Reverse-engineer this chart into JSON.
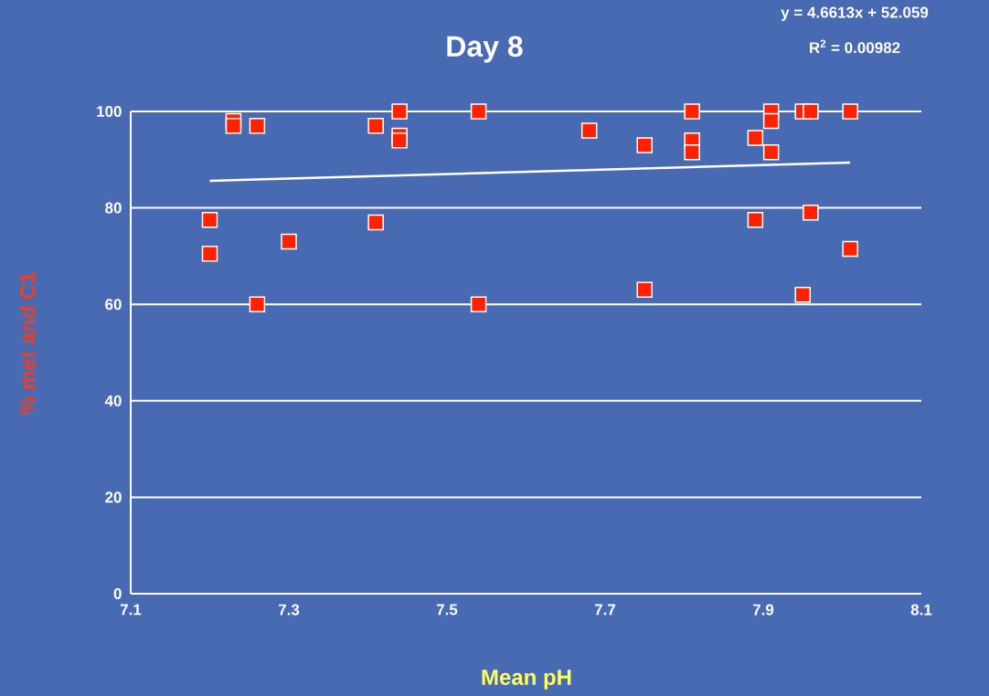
{
  "chart_data": {
    "type": "scatter",
    "title": "Day 8",
    "xlabel": "Mean pH",
    "ylabel": "% met and C1",
    "annotations": [
      "y = 4.6613x + 52.059",
      "R$^{2}$ = 0.00982"
    ],
    "xlim": [
      7.1,
      8.1
    ],
    "xticks": [
      7.1,
      7.3,
      7.5,
      7.7,
      7.9,
      8.1
    ],
    "ylim": [
      0,
      100
    ],
    "yticks": [
      0,
      20,
      40,
      60,
      80,
      100
    ],
    "grid": "y",
    "marker": "square",
    "series": [
      {
        "color": "#ff2200",
        "x": [
          7.2,
          7.2,
          7.23,
          7.23,
          7.26,
          7.26,
          7.3,
          7.41,
          7.41,
          7.44,
          7.44,
          7.44,
          7.54,
          7.54,
          7.68,
          7.75,
          7.75,
          7.81,
          7.81,
          7.81,
          7.89,
          7.89,
          7.91,
          7.91,
          7.91,
          7.95,
          7.95,
          7.96,
          7.96,
          8.01,
          8.01
        ],
        "values": [
          77.5,
          70.5,
          98,
          97,
          97,
          60,
          73,
          97,
          77,
          100,
          95,
          94,
          100,
          60,
          96,
          93,
          63,
          100,
          94,
          91.5,
          94.5,
          77.5,
          100,
          98,
          91.5,
          100,
          62,
          100,
          79,
          100,
          71.5
        ]
      },
      {
        "type": "line",
        "color": "#ffffff",
        "marker": "none",
        "x": [
          7.2,
          8.01
        ],
        "values": [
          85.6,
          89.4
        ]
      }
    ]
  }
}
